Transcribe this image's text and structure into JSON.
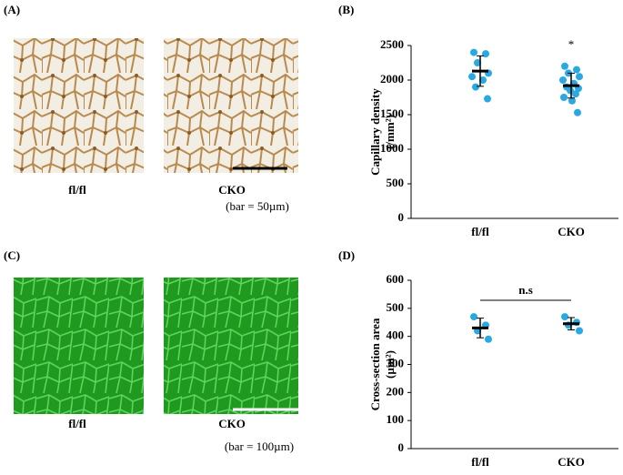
{
  "figure": {
    "panel_a": {
      "label": "(A)",
      "left_caption": "fl/fl",
      "right_caption": "CKO",
      "scale_note": "(bar = 50µm)"
    },
    "panel_c": {
      "label": "(C)",
      "left_caption": "fl/fl",
      "right_caption": "CKO",
      "scale_note": "(bar = 100µm)"
    }
  },
  "chart_data": [
    {
      "type": "strip",
      "label": "(B)",
      "ylabel": [
        "Capillary density",
        "(/mm²)"
      ],
      "categories": [
        "fl/fl",
        "CKO"
      ],
      "color": "#29a9e1",
      "points": [
        [
          2400,
          2380,
          2250,
          2100,
          2050,
          2000,
          1900,
          1730
        ],
        [
          2200,
          2150,
          2100,
          2050,
          2000,
          1950,
          1900,
          1880,
          1850,
          1800,
          1750,
          1700,
          1530
        ]
      ],
      "means": [
        2130,
        1920
      ],
      "errors": [
        220,
        180
      ],
      "annotation": "*",
      "ylim": [
        0,
        2500
      ],
      "yticks": [
        0,
        500,
        1000,
        1500,
        2000,
        2500
      ]
    },
    {
      "type": "strip",
      "label": "(D)",
      "ylabel": [
        "Cross-section  area",
        "(µm²)"
      ],
      "categories": [
        "fl/fl",
        "CKO"
      ],
      "color": "#29a9e1",
      "points": [
        [
          470,
          440,
          420,
          390
        ],
        [
          470,
          450,
          440,
          420
        ]
      ],
      "means": [
        430,
        445
      ],
      "errors": [
        35,
        22
      ],
      "annotation": "n.s",
      "ylim": [
        0,
        600
      ],
      "yticks": [
        0,
        100,
        200,
        300,
        400,
        500,
        600
      ]
    }
  ]
}
